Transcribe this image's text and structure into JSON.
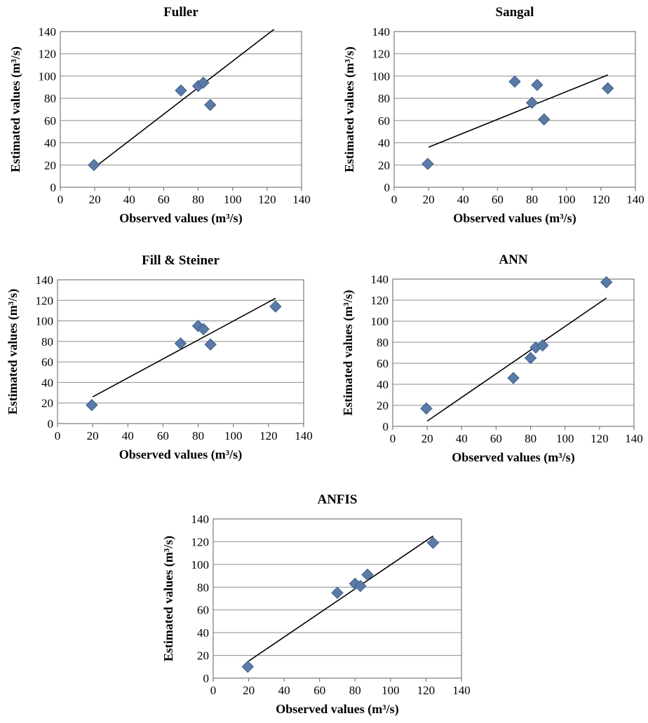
{
  "chart_data": [
    {
      "type": "scatter",
      "title": "Fuller",
      "xlabel": "Observed values (m³/s)",
      "ylabel": "Estimated values (m³/s)",
      "xlim": [
        0,
        140
      ],
      "ylim": [
        0,
        140
      ],
      "xticks": [
        0,
        20,
        40,
        60,
        80,
        100,
        120,
        140
      ],
      "yticks": [
        0,
        20,
        40,
        60,
        80,
        100,
        120,
        140
      ],
      "grid": true,
      "points": [
        {
          "x": 19.5,
          "y": 20
        },
        {
          "x": 70,
          "y": 87
        },
        {
          "x": 80,
          "y": 91
        },
        {
          "x": 83,
          "y": 94
        },
        {
          "x": 87,
          "y": 74
        }
      ],
      "trendline": [
        {
          "x": 20,
          "y": 18
        },
        {
          "x": 124,
          "y": 142
        }
      ]
    },
    {
      "type": "scatter",
      "title": "Sangal",
      "xlabel": "Observed values (m³/s)",
      "ylabel": "Estimated values (m³/s)",
      "xlim": [
        0,
        140
      ],
      "ylim": [
        0,
        140
      ],
      "xticks": [
        0,
        20,
        40,
        60,
        80,
        100,
        120,
        140
      ],
      "yticks": [
        0,
        20,
        40,
        60,
        80,
        100,
        120,
        140
      ],
      "grid": true,
      "points": [
        {
          "x": 19.5,
          "y": 21
        },
        {
          "x": 70,
          "y": 95
        },
        {
          "x": 80,
          "y": 76
        },
        {
          "x": 83,
          "y": 92
        },
        {
          "x": 87,
          "y": 61
        },
        {
          "x": 124,
          "y": 89
        }
      ],
      "trendline": [
        {
          "x": 20,
          "y": 36
        },
        {
          "x": 124,
          "y": 101
        }
      ]
    },
    {
      "type": "scatter",
      "title": "Fill & Steiner",
      "xlabel": "Observed values (m³/s)",
      "ylabel": "Estimated values (m³/s)",
      "xlim": [
        0,
        140
      ],
      "ylim": [
        0,
        140
      ],
      "xticks": [
        0,
        20,
        40,
        60,
        80,
        100,
        120,
        140
      ],
      "yticks": [
        0,
        20,
        40,
        60,
        80,
        100,
        120,
        140
      ],
      "grid": true,
      "points": [
        {
          "x": 19.5,
          "y": 18
        },
        {
          "x": 70,
          "y": 78
        },
        {
          "x": 80,
          "y": 95
        },
        {
          "x": 83,
          "y": 92
        },
        {
          "x": 87,
          "y": 77
        },
        {
          "x": 124,
          "y": 114
        }
      ],
      "trendline": [
        {
          "x": 20,
          "y": 26
        },
        {
          "x": 124,
          "y": 122
        }
      ]
    },
    {
      "type": "scatter",
      "title": "ANN",
      "xlabel": "Observed values (m³/s)",
      "ylabel": "Estimated values (m³/s)",
      "xlim": [
        0,
        140
      ],
      "ylim": [
        0,
        140
      ],
      "xticks": [
        0,
        20,
        40,
        60,
        80,
        100,
        120,
        140
      ],
      "yticks": [
        0,
        20,
        40,
        60,
        80,
        100,
        120,
        140
      ],
      "grid": true,
      "points": [
        {
          "x": 19.5,
          "y": 17
        },
        {
          "x": 70,
          "y": 46
        },
        {
          "x": 80,
          "y": 65
        },
        {
          "x": 83,
          "y": 75
        },
        {
          "x": 87,
          "y": 77
        },
        {
          "x": 124,
          "y": 137
        }
      ],
      "trendline": [
        {
          "x": 20,
          "y": 5
        },
        {
          "x": 124,
          "y": 122
        }
      ]
    },
    {
      "type": "scatter",
      "title": "ANFIS",
      "xlabel": "Observed values (m³/s)",
      "ylabel": "Estimated values (m³/s)",
      "xlim": [
        0,
        140
      ],
      "ylim": [
        0,
        140
      ],
      "xticks": [
        0,
        20,
        40,
        60,
        80,
        100,
        120,
        140
      ],
      "yticks": [
        0,
        20,
        40,
        60,
        80,
        100,
        120,
        140
      ],
      "grid": true,
      "points": [
        {
          "x": 19.5,
          "y": 10
        },
        {
          "x": 70,
          "y": 75
        },
        {
          "x": 80,
          "y": 83
        },
        {
          "x": 83,
          "y": 81
        },
        {
          "x": 87,
          "y": 91
        },
        {
          "x": 124,
          "y": 119
        }
      ],
      "trendline": [
        {
          "x": 20,
          "y": 15
        },
        {
          "x": 124,
          "y": 125
        }
      ]
    }
  ]
}
